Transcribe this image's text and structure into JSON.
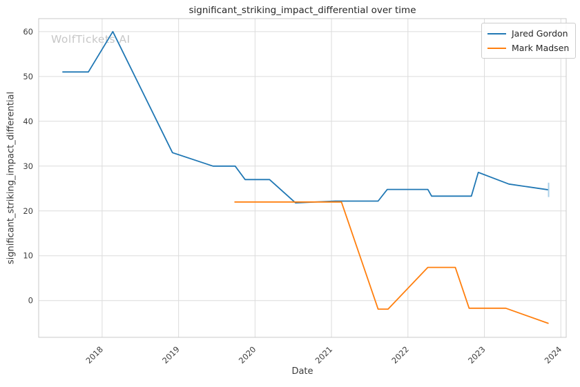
{
  "figure": {
    "title": "significant_striking_impact_differential over time",
    "xlabel": "Date",
    "ylabel": "significant_striking_impact_differential",
    "watermark": "WolfTickets AI"
  },
  "chart_data": {
    "type": "line",
    "title": "significant_striking_impact_differential over time",
    "xlabel": "Date",
    "ylabel": "significant_striking_impact_differential",
    "x_unit": "decimal_year",
    "xlim": [
      2017.17,
      2024.07
    ],
    "ylim": [
      -8.2,
      62.9
    ],
    "x_ticks": [
      2018,
      2019,
      2020,
      2021,
      2022,
      2023,
      2024
    ],
    "y_ticks": [
      0,
      10,
      20,
      30,
      40,
      50,
      60
    ],
    "grid": true,
    "legend_position": "upper right",
    "series": [
      {
        "name": "Jared Gordon",
        "color": "#1f77b4",
        "points": [
          [
            2017.48,
            51
          ],
          [
            2017.82,
            51
          ],
          [
            2018.14,
            60
          ],
          [
            2018.92,
            33
          ],
          [
            2019.45,
            30
          ],
          [
            2019.74,
            30
          ],
          [
            2019.87,
            27
          ],
          [
            2020.19,
            27
          ],
          [
            2020.53,
            21.8
          ],
          [
            2021.05,
            22.2
          ],
          [
            2021.61,
            22.2
          ],
          [
            2021.73,
            24.8
          ],
          [
            2022.26,
            24.8
          ],
          [
            2022.31,
            23.3
          ],
          [
            2022.83,
            23.3
          ],
          [
            2022.92,
            28.6
          ],
          [
            2023.32,
            26
          ],
          [
            2023.84,
            24.7
          ]
        ]
      },
      {
        "name": "Mark Madsen",
        "color": "#ff7f0e",
        "points": [
          [
            2019.73,
            22
          ],
          [
            2021.13,
            22
          ],
          [
            2021.61,
            -1.9
          ],
          [
            2021.74,
            -1.9
          ],
          [
            2022.26,
            7.4
          ],
          [
            2022.62,
            7.4
          ],
          [
            2022.8,
            -1.7
          ],
          [
            2023.28,
            -1.7
          ],
          [
            2023.84,
            -5.1
          ]
        ]
      }
    ],
    "end_tick": {
      "series": "Jared Gordon",
      "x": 2023.84,
      "y": 24.7,
      "half_height": 1.6,
      "color": "#a9cfe8"
    }
  },
  "style": {
    "grid_color": "#dcdcdc",
    "spine_color": "#c9c9c9",
    "tick_label_color": "#3d3d3d"
  }
}
